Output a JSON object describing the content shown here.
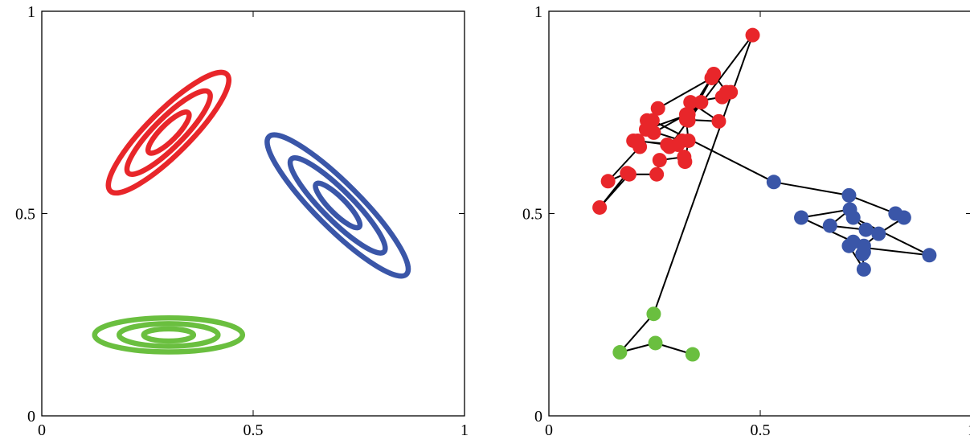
{
  "chart_data": [
    {
      "type": "contour",
      "xlim": [
        0,
        1
      ],
      "ylim": [
        0,
        1
      ],
      "xticks": [
        "0",
        "0.5",
        "1"
      ],
      "yticks": [
        "0",
        "0.5",
        "1"
      ],
      "grid": false,
      "series": [
        {
          "color": "#e8262a",
          "center": [
            0.3,
            0.7
          ],
          "semi_axes": [
            [
              0.195,
              0.053
            ],
            [
              0.135,
              0.036
            ],
            [
              0.066,
              0.02
            ]
          ],
          "angle_deg": 45
        },
        {
          "color": "#3a56a8",
          "center": [
            0.7,
            0.52
          ],
          "semi_axes": [
            [
              0.23,
              0.055
            ],
            [
              0.155,
              0.037
            ],
            [
              0.072,
              0.02
            ]
          ],
          "angle_deg": -45
        },
        {
          "color": "#6abf3f",
          "center": [
            0.3,
            0.2
          ],
          "semi_axes": [
            [
              0.175,
              0.042
            ],
            [
              0.117,
              0.028
            ],
            [
              0.059,
              0.015
            ]
          ],
          "angle_deg": 0
        }
      ]
    },
    {
      "type": "scatter",
      "xlim": [
        0,
        1
      ],
      "ylim": [
        0,
        1
      ],
      "xticks": [
        "0",
        "0.5",
        "1"
      ],
      "yticks": [
        "0",
        "0.5",
        "1"
      ],
      "grid": false,
      "connected_by_line": true,
      "line_color": "#000000",
      "series": [
        {
          "color": "#6abf3f",
          "points": [
            [
              0.34,
              0.152
            ],
            [
              0.252,
              0.18
            ],
            [
              0.168,
              0.157
            ],
            [
              0.248,
              0.252
            ]
          ]
        },
        {
          "color": "#e8262a",
          "points": [
            [
              0.482,
              0.941
            ],
            [
              0.33,
              0.73
            ],
            [
              0.385,
              0.835
            ],
            [
              0.258,
              0.76
            ],
            [
              0.232,
              0.73
            ],
            [
              0.248,
              0.7
            ],
            [
              0.325,
              0.745
            ],
            [
              0.36,
              0.775
            ],
            [
              0.285,
              0.665
            ],
            [
              0.305,
              0.67
            ],
            [
              0.2,
              0.68
            ],
            [
              0.215,
              0.665
            ],
            [
              0.14,
              0.58
            ],
            [
              0.185,
              0.6
            ],
            [
              0.12,
              0.515
            ],
            [
              0.19,
              0.597
            ],
            [
              0.255,
              0.597
            ],
            [
              0.262,
              0.632
            ],
            [
              0.32,
              0.64
            ],
            [
              0.322,
              0.628
            ],
            [
              0.33,
              0.68
            ],
            [
              0.325,
              0.732
            ],
            [
              0.402,
              0.728
            ],
            [
              0.335,
              0.775
            ],
            [
              0.41,
              0.788
            ],
            [
              0.43,
              0.8
            ],
            [
              0.42,
              0.8
            ],
            [
              0.39,
              0.845
            ],
            [
              0.33,
              0.745
            ],
            [
              0.23,
              0.708
            ],
            [
              0.315,
              0.68
            ],
            [
              0.28,
              0.67
            ],
            [
              0.21,
              0.68
            ],
            [
              0.245,
              0.73
            ]
          ]
        },
        {
          "color": "#3a56a8",
          "points": [
            [
              0.532,
              0.578
            ],
            [
              0.71,
              0.545
            ],
            [
              0.82,
              0.5
            ],
            [
              0.84,
              0.49
            ],
            [
              0.78,
              0.45
            ],
            [
              0.745,
              0.42
            ],
            [
              0.742,
              0.4
            ],
            [
              0.745,
              0.362
            ],
            [
              0.71,
              0.42
            ],
            [
              0.9,
              0.397
            ],
            [
              0.72,
              0.49
            ],
            [
              0.75,
              0.46
            ],
            [
              0.665,
              0.47
            ],
            [
              0.712,
              0.51
            ],
            [
              0.597,
              0.49
            ],
            [
              0.72,
              0.43
            ],
            [
              0.745,
              0.405
            ]
          ]
        }
      ]
    }
  ]
}
